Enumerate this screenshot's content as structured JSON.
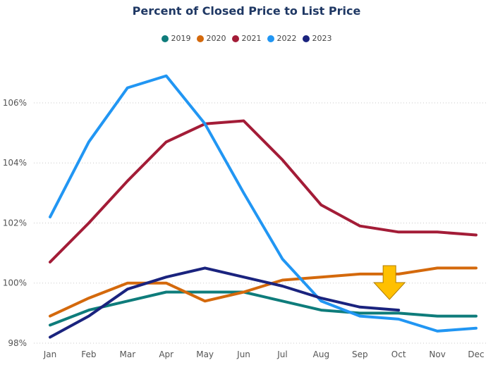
{
  "chart_data": {
    "type": "line",
    "title": "Percent of Closed Price to List Price",
    "categories": [
      "Jan",
      "Feb",
      "Mar",
      "Apr",
      "May",
      "Jun",
      "Jul",
      "Aug",
      "Sep",
      "Oct",
      "Nov",
      "Dec"
    ],
    "ylim": [
      98,
      107.5
    ],
    "yticks": [
      98,
      100,
      102,
      104,
      106
    ],
    "ytick_labels": [
      "98%",
      "100%",
      "102%",
      "104%",
      "106%"
    ],
    "grid": "horizontal-dotted",
    "legend_position": "top-center",
    "annotation": "down-arrow above Oct",
    "series": [
      {
        "name": "2019",
        "color": "#0e7c7b",
        "values": [
          98.6,
          99.1,
          99.4,
          99.7,
          99.7,
          99.7,
          99.4,
          99.1,
          99.0,
          99.0,
          98.9,
          98.9
        ]
      },
      {
        "name": "2020",
        "color": "#d4690c",
        "values": [
          98.9,
          99.5,
          100.0,
          100.0,
          99.4,
          99.7,
          100.1,
          100.2,
          100.3,
          100.3,
          100.5,
          100.5
        ]
      },
      {
        "name": "2021",
        "color": "#a31c37",
        "values": [
          100.7,
          102.0,
          103.4,
          104.7,
          105.3,
          105.4,
          104.1,
          102.6,
          101.9,
          101.7,
          101.7,
          101.6
        ]
      },
      {
        "name": "2022",
        "color": "#2196f3",
        "values": [
          102.2,
          104.7,
          106.5,
          106.9,
          105.3,
          103.0,
          100.8,
          99.4,
          98.9,
          98.8,
          98.4,
          98.5
        ]
      },
      {
        "name": "2023",
        "color": "#1a237e",
        "values": [
          98.2,
          98.9,
          99.8,
          100.2,
          100.5,
          100.2,
          99.9,
          99.5,
          99.2,
          99.1,
          null,
          null
        ]
      }
    ]
  }
}
